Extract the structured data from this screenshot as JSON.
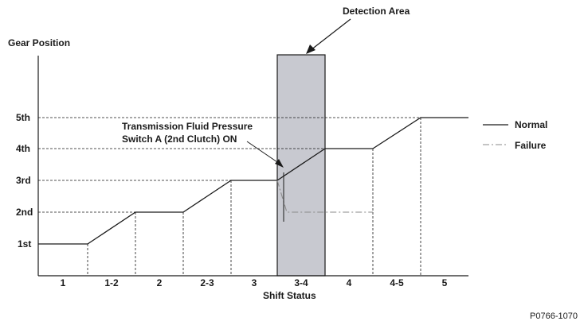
{
  "diagram": {
    "title_y": "Gear Position",
    "title_x": "Shift Status",
    "detection_area_label": "Detection Area",
    "callout": [
      "Transmission Fluid Pressure",
      "Switch A (2nd Clutch) ON"
    ],
    "figure_code": "P0766-1070",
    "gears": [
      "1st",
      "2nd",
      "3rd",
      "4th",
      "5th"
    ],
    "shift_status": [
      "1",
      "1-2",
      "2",
      "2-3",
      "3",
      "3-4",
      "4",
      "4-5",
      "5"
    ],
    "legend": [
      {
        "label": "Normal",
        "style": "solid"
      },
      {
        "label": "Failure",
        "style": "dash-dot"
      }
    ],
    "colors": {
      "detection_area": "#c8c9d0",
      "line": "#1a1a1a",
      "failure_line": "#8a8a8a"
    }
  }
}
